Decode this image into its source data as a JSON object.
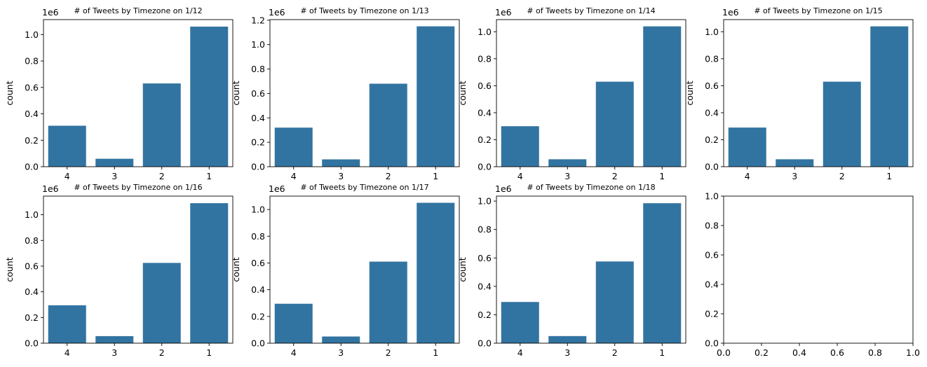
{
  "chart_data": [
    {
      "type": "bar",
      "title": "# of Tweets by Timezone on 1/12",
      "xlabel": "",
      "ylabel": "count",
      "offset_label": "1e6",
      "categories": [
        "4",
        "3",
        "2",
        "1"
      ],
      "values": [
        0.31,
        0.06,
        0.63,
        1.06
      ],
      "ylim": [
        0,
        1.113
      ],
      "yticks": [
        "0.0",
        "0.2",
        "0.4",
        "0.6",
        "0.8",
        "1.0"
      ],
      "color": "#3274a1"
    },
    {
      "type": "bar",
      "title": "# of Tweets by Timezone on 1/13",
      "xlabel": "",
      "ylabel": "count",
      "offset_label": "1e6",
      "categories": [
        "4",
        "3",
        "2",
        "1"
      ],
      "values": [
        0.32,
        0.06,
        0.68,
        1.15
      ],
      "ylim": [
        0,
        1.205
      ],
      "yticks": [
        "0.0",
        "0.2",
        "0.4",
        "0.6",
        "0.8",
        "1.0",
        "1.2"
      ],
      "color": "#3274a1"
    },
    {
      "type": "bar",
      "title": "# of Tweets by Timezone on 1/14",
      "xlabel": "",
      "ylabel": "count",
      "offset_label": "1e6",
      "categories": [
        "4",
        "3",
        "2",
        "1"
      ],
      "values": [
        0.3,
        0.055,
        0.63,
        1.04
      ],
      "ylim": [
        0,
        1.09
      ],
      "yticks": [
        "0.0",
        "0.2",
        "0.4",
        "0.6",
        "0.8",
        "1.0"
      ],
      "color": "#3274a1"
    },
    {
      "type": "bar",
      "title": "# of Tweets by Timezone on 1/15",
      "xlabel": "",
      "ylabel": "count",
      "offset_label": "1e6",
      "categories": [
        "4",
        "3",
        "2",
        "1"
      ],
      "values": [
        0.29,
        0.055,
        0.63,
        1.04
      ],
      "ylim": [
        0,
        1.09
      ],
      "yticks": [
        "0.0",
        "0.2",
        "0.4",
        "0.6",
        "0.8",
        "1.0"
      ],
      "color": "#3274a1"
    },
    {
      "type": "bar",
      "title": "# of Tweets by Timezone on 1/16",
      "xlabel": "",
      "ylabel": "count",
      "offset_label": "1e6",
      "categories": [
        "4",
        "3",
        "2",
        "1"
      ],
      "values": [
        0.295,
        0.055,
        0.625,
        1.09
      ],
      "ylim": [
        0,
        1.145
      ],
      "yticks": [
        "0.0",
        "0.2",
        "0.4",
        "0.6",
        "0.8",
        "1.0"
      ],
      "color": "#3274a1"
    },
    {
      "type": "bar",
      "title": "# of Tweets by Timezone on 1/17",
      "xlabel": "",
      "ylabel": "count",
      "offset_label": "1e6",
      "categories": [
        "4",
        "3",
        "2",
        "1"
      ],
      "values": [
        0.295,
        0.05,
        0.61,
        1.05
      ],
      "ylim": [
        0,
        1.1
      ],
      "yticks": [
        "0.0",
        "0.2",
        "0.4",
        "0.6",
        "0.8",
        "1.0"
      ],
      "color": "#3274a1"
    },
    {
      "type": "bar",
      "title": "# of Tweets by Timezone on 1/18",
      "xlabel": "",
      "ylabel": "count",
      "offset_label": "1e6",
      "categories": [
        "4",
        "3",
        "2",
        "1"
      ],
      "values": [
        0.29,
        0.05,
        0.575,
        0.985
      ],
      "ylim": [
        0,
        1.035
      ],
      "yticks": [
        "0.0",
        "0.2",
        "0.4",
        "0.6",
        "0.8",
        "1.0"
      ],
      "color": "#3274a1"
    },
    {
      "type": "empty",
      "title": "",
      "xlim": [
        0,
        1
      ],
      "ylim": [
        0,
        1
      ],
      "xticks": [
        "0.0",
        "0.2",
        "0.4",
        "0.6",
        "0.8",
        "1.0"
      ],
      "yticks": [
        "0.0",
        "0.2",
        "0.4",
        "0.6",
        "0.8",
        "1.0"
      ]
    }
  ]
}
